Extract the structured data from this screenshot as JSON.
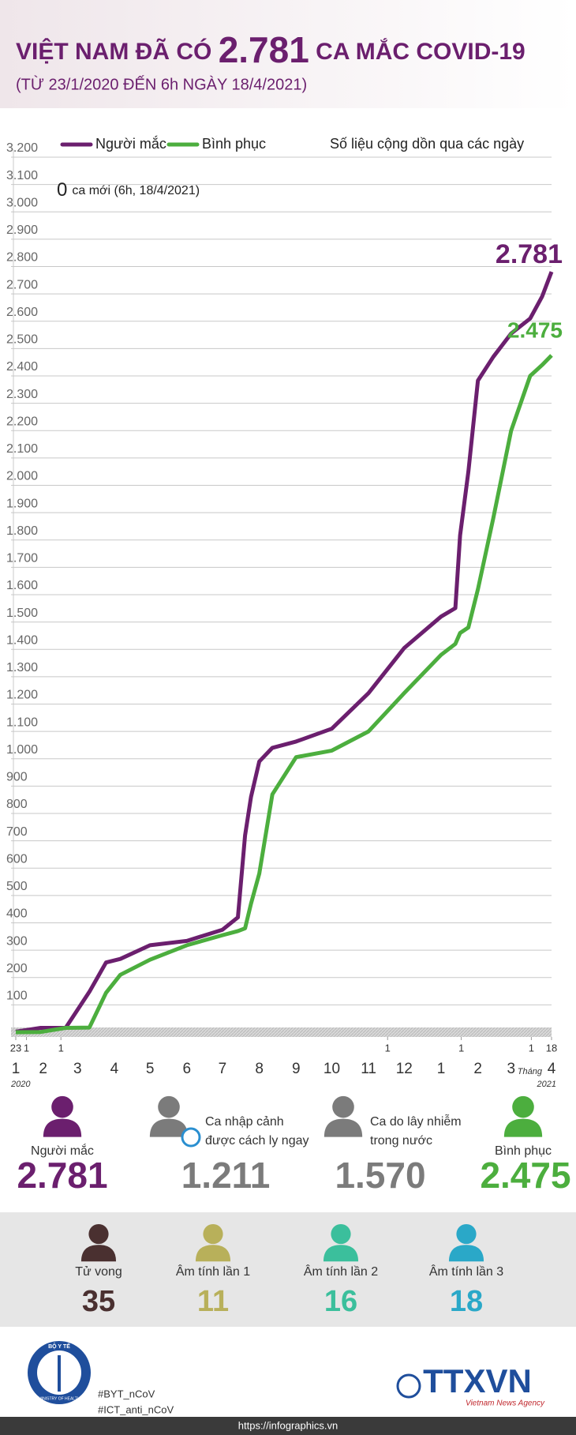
{
  "header": {
    "title_prefix": "VIỆT NAM ĐÃ CÓ",
    "title_number": "2.781",
    "title_suffix": "CA MẮC COVID-19",
    "subtitle": "(TỪ 23/1/2020 ĐẾN 6h NGÀY 18/4/2021)"
  },
  "chart_data": {
    "type": "line",
    "note": "Số liệu cộng dồn qua các ngày",
    "new_cases": {
      "value": 0,
      "label": "ca mới (6h, 18/4/2021)"
    },
    "x": [
      "2020-01-23",
      "2020-02-13",
      "2020-03-05",
      "2020-03-25",
      "2020-04-08",
      "2020-04-20",
      "2020-05-15",
      "2020-06-15",
      "2020-07-15",
      "2020-07-28",
      "2020-08-03",
      "2020-08-08",
      "2020-08-15",
      "2020-08-26",
      "2020-09-15",
      "2020-10-15",
      "2020-11-15",
      "2020-12-15",
      "2021-01-15",
      "2021-01-27",
      "2021-01-31",
      "2021-02-07",
      "2021-02-15",
      "2021-02-28",
      "2021-03-15",
      "2021-03-31",
      "2021-04-10",
      "2021-04-18"
    ],
    "series": [
      {
        "name": "Người mắc",
        "color": "#6b1f6e",
        "end_label": "2.781",
        "values": [
          2,
          16,
          16,
          148,
          255,
          268,
          318,
          334,
          375,
          420,
          720,
          860,
          990,
          1040,
          1063,
          1110,
          1240,
          1405,
          1520,
          1551,
          1817,
          2050,
          2383,
          2470,
          2555,
          2610,
          2690,
          2781
        ]
      },
      {
        "name": "Bình phục",
        "color": "#4cae3e",
        "end_label": "2.475",
        "values": [
          0,
          1,
          16,
          17,
          144,
          210,
          265,
          318,
          355,
          370,
          380,
          470,
          580,
          870,
          1006,
          1030,
          1100,
          1240,
          1380,
          1420,
          1460,
          1480,
          1620,
          1880,
          2200,
          2400,
          2440,
          2475
        ]
      }
    ],
    "xlim": [
      "2020-01-23",
      "2021-04-18"
    ],
    "xticks": [
      {
        "value": "2020-01-23",
        "label": "23"
      },
      {
        "value": "2020-02-01",
        "label": "1"
      },
      {
        "value": "2020-03-01",
        "label": "1"
      },
      {
        "value": "2020-12-01",
        "label": "1"
      },
      {
        "value": "2021-02-01",
        "label": "1"
      },
      {
        "value": "2021-04-01",
        "label": "1"
      },
      {
        "value": "2021-04-18",
        "label": "18"
      }
    ],
    "month_labels": [
      {
        "value": "2020-01-23",
        "label": "1"
      },
      {
        "value": "2020-02-15",
        "label": "2"
      },
      {
        "value": "2020-03-15",
        "label": "3"
      },
      {
        "value": "2020-04-15",
        "label": "4"
      },
      {
        "value": "2020-05-15",
        "label": "5"
      },
      {
        "value": "2020-06-15",
        "label": "6"
      },
      {
        "value": "2020-07-15",
        "label": "7"
      },
      {
        "value": "2020-08-15",
        "label": "8"
      },
      {
        "value": "2020-09-15",
        "label": "9"
      },
      {
        "value": "2020-10-15",
        "label": "10"
      },
      {
        "value": "2020-11-15",
        "label": "11"
      },
      {
        "value": "2020-12-15",
        "label": "12"
      },
      {
        "value": "2021-01-15",
        "label": "1"
      },
      {
        "value": "2021-02-15",
        "label": "2"
      },
      {
        "value": "2021-03-15",
        "label": "3"
      },
      {
        "value": "2021-04-18",
        "label": "4"
      }
    ],
    "year_start": "2020",
    "year_end": "2021",
    "month_word": "Tháng",
    "ylim": [
      0,
      3200
    ],
    "yticks": [
      {
        "value": 100,
        "label": "100"
      },
      {
        "value": 200,
        "label": "200"
      },
      {
        "value": 300,
        "label": "300"
      },
      {
        "value": 400,
        "label": "400"
      },
      {
        "value": 500,
        "label": "500"
      },
      {
        "value": 600,
        "label": "600"
      },
      {
        "value": 700,
        "label": "700"
      },
      {
        "value": 800,
        "label": "800"
      },
      {
        "value": 900,
        "label": "900"
      },
      {
        "value": 1000,
        "label": "1.000"
      },
      {
        "value": 1100,
        "label": "1.100"
      },
      {
        "value": 1200,
        "label": "1.200"
      },
      {
        "value": 1300,
        "label": "1.300"
      },
      {
        "value": 1400,
        "label": "1.400"
      },
      {
        "value": 1500,
        "label": "1.500"
      },
      {
        "value": 1600,
        "label": "1.600"
      },
      {
        "value": 1700,
        "label": "1.700"
      },
      {
        "value": 1800,
        "label": "1.800"
      },
      {
        "value": 1900,
        "label": "1.900"
      },
      {
        "value": 2000,
        "label": "2.000"
      },
      {
        "value": 2100,
        "label": "2.100"
      },
      {
        "value": 2200,
        "label": "2.200"
      },
      {
        "value": 2300,
        "label": "2.300"
      },
      {
        "value": 2400,
        "label": "2.400"
      },
      {
        "value": 2500,
        "label": "2.500"
      },
      {
        "value": 2600,
        "label": "2.600"
      },
      {
        "value": 2700,
        "label": "2.700"
      },
      {
        "value": 2800,
        "label": "2.800"
      },
      {
        "value": 2900,
        "label": "2.900"
      },
      {
        "value": 3000,
        "label": "3.000"
      },
      {
        "value": 3100,
        "label": "3.100"
      },
      {
        "value": 3200,
        "label": "3.200"
      }
    ],
    "grid": true
  },
  "stats": {
    "top": [
      {
        "label": [
          "Người mắc"
        ],
        "value": "2.781"
      },
      {
        "label": [
          "Ca nhập cảnh",
          "được cách ly ngay"
        ],
        "value": "1.211"
      },
      {
        "label": [
          "Ca do lây nhiễm",
          "trong nước"
        ],
        "value": "1.570"
      },
      {
        "label": [
          "Bình phục"
        ],
        "value": "2.475"
      }
    ],
    "bottom": [
      {
        "label": "Tử vong",
        "value": "35"
      },
      {
        "label": "Âm tính lần 1",
        "value": "11"
      },
      {
        "label": "Âm tính lần 2",
        "value": "16"
      },
      {
        "label": "Âm tính lần 3",
        "value": "18"
      }
    ]
  },
  "footer": {
    "logo_top": "BỘ Y TẾ",
    "logo_bottom": "MINISTRY OF HEALTH",
    "hashtags": [
      "#BYT_nCoV",
      "#ICT_anti_nCoV"
    ],
    "agency": "TTXVN",
    "agency_sub": "Vietnam News Agency",
    "url": "https://infographics.vn"
  }
}
